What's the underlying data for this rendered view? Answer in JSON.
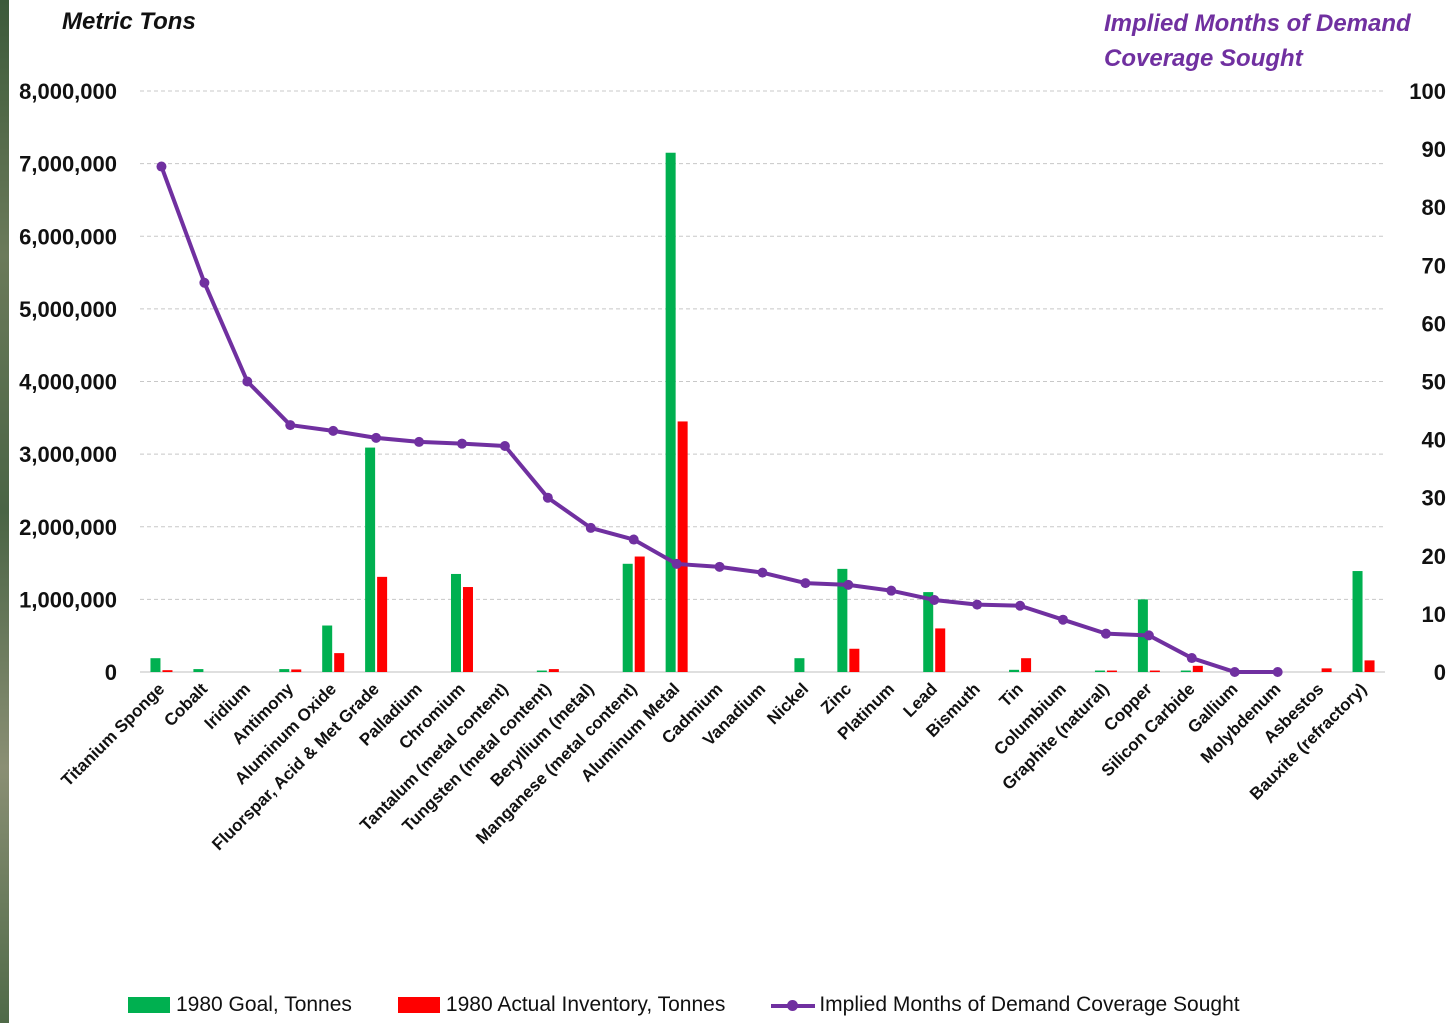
{
  "chart_data": {
    "type": "bar",
    "left_axis_title": "Metric Tons",
    "right_axis_title": "Implied Months of Demand Coverage Sought",
    "categories": [
      "Titanium Sponge",
      "Cobalt",
      "Iridium",
      "Antimony",
      "Aluminum Oxide",
      "Fluorspar, Acid & Met Grade",
      "Palladium",
      "Chromium",
      "Tantalum (metal content)",
      "Tungsten (metal content)",
      "Beryllium (metal)",
      "Manganese (metal content)",
      "Aluminum Metal",
      "Cadmium",
      "Vanadium",
      "Nickel",
      "Zinc",
      "Platinum",
      "Lead",
      "Bismuth",
      "Tin",
      "Columbium",
      "Graphite (natural)",
      "Copper",
      "Silicon Carbide",
      "Gallium",
      "Molybdenum",
      "Asbestos",
      "Bauxite (refractory)"
    ],
    "left_axis": {
      "min": 0,
      "max": 8000000,
      "ticks": [
        "0",
        "1,000,000",
        "2,000,000",
        "3,000,000",
        "4,000,000",
        "5,000,000",
        "6,000,000",
        "7,000,000",
        "8,000,000"
      ]
    },
    "right_axis": {
      "min": 0,
      "max": 100,
      "ticks": [
        "0",
        "10",
        "20",
        "30",
        "40",
        "50",
        "60",
        "70",
        "80",
        "90",
        "100"
      ]
    },
    "series": [
      {
        "name": "1980 Goal, Tonnes",
        "type": "bar",
        "axis": "left",
        "color": "#00b050",
        "values": [
          190000,
          40000,
          0,
          40000,
          640000,
          3090000,
          0,
          1350000,
          0,
          20000,
          0,
          1490000,
          7150000,
          0,
          0,
          190000,
          1420000,
          0,
          1100000,
          0,
          30000,
          0,
          20000,
          1000000,
          20000,
          0,
          0,
          0,
          1390000
        ]
      },
      {
        "name": "1980 Actual Inventory, Tonnes",
        "type": "bar",
        "axis": "left",
        "color": "#ff0000",
        "values": [
          25000,
          0,
          0,
          35000,
          260000,
          1310000,
          0,
          1170000,
          0,
          40000,
          0,
          1590000,
          3450000,
          0,
          0,
          0,
          320000,
          0,
          600000,
          0,
          190000,
          0,
          20000,
          20000,
          85000,
          0,
          0,
          50000,
          160000
        ]
      },
      {
        "name": "Implied Months of Demand Coverage Sought",
        "type": "line",
        "axis": "right",
        "color": "#7030a0",
        "values": [
          87,
          67,
          50,
          42.5,
          41.5,
          40.3,
          39.6,
          39.3,
          38.9,
          30,
          24.8,
          22.8,
          18.6,
          18.1,
          17.1,
          15.3,
          15,
          14,
          12.4,
          11.6,
          11.4,
          9,
          6.6,
          6.3,
          2.4,
          0,
          0,
          null,
          null
        ]
      }
    ],
    "grid": "horizontal dashed",
    "legend_position": "bottom"
  }
}
